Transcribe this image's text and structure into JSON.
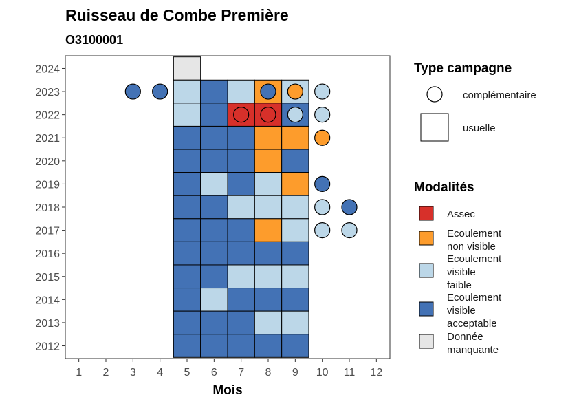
{
  "chart_data": {
    "type": "heatmap",
    "title": "Ruisseau de Combe Première",
    "subtitle": "O3100001",
    "xlabel": "Mois",
    "ylabel": "",
    "x_ticks": [
      1,
      2,
      3,
      4,
      5,
      6,
      7,
      8,
      9,
      10,
      11,
      12
    ],
    "y_ticks": [
      2012,
      2013,
      2014,
      2015,
      2016,
      2017,
      2018,
      2019,
      2020,
      2021,
      2022,
      2023,
      2024
    ],
    "xlim": [
      0.5,
      12.5
    ],
    "ylim": [
      2011.45,
      2024.55
    ],
    "colors": {
      "Assec": "#d7302a",
      "Ecoulement non visible": "#fd9c2c",
      "Ecoulement visible faible": "#bcd7e8",
      "Ecoulement visible acceptable": "#4372b5",
      "Donnée manquante": "#e6e6e6"
    },
    "usuelle": [
      {
        "year": 2024,
        "months": [
          5
        ],
        "values": [
          "Donnée manquante"
        ]
      },
      {
        "year": 2023,
        "months": [
          5,
          6,
          7,
          8,
          9
        ],
        "values": [
          "Ecoulement visible faible",
          "Ecoulement visible acceptable",
          "Ecoulement visible faible",
          "Ecoulement non visible",
          "Ecoulement visible faible"
        ]
      },
      {
        "year": 2022,
        "months": [
          5,
          6,
          7,
          8,
          9
        ],
        "values": [
          "Ecoulement visible faible",
          "Ecoulement visible acceptable",
          "Assec",
          "Assec",
          "Ecoulement visible acceptable"
        ]
      },
      {
        "year": 2021,
        "months": [
          5,
          6,
          7,
          8,
          9
        ],
        "values": [
          "Ecoulement visible acceptable",
          "Ecoulement visible acceptable",
          "Ecoulement visible acceptable",
          "Ecoulement non visible",
          "Ecoulement non visible"
        ]
      },
      {
        "year": 2020,
        "months": [
          5,
          6,
          7,
          8,
          9
        ],
        "values": [
          "Ecoulement visible acceptable",
          "Ecoulement visible acceptable",
          "Ecoulement visible acceptable",
          "Ecoulement non visible",
          "Ecoulement visible acceptable"
        ]
      },
      {
        "year": 2019,
        "months": [
          5,
          6,
          7,
          8,
          9
        ],
        "values": [
          "Ecoulement visible acceptable",
          "Ecoulement visible faible",
          "Ecoulement visible acceptable",
          "Ecoulement visible faible",
          "Ecoulement non visible"
        ]
      },
      {
        "year": 2018,
        "months": [
          5,
          6,
          7,
          8,
          9
        ],
        "values": [
          "Ecoulement visible acceptable",
          "Ecoulement visible acceptable",
          "Ecoulement visible faible",
          "Ecoulement visible faible",
          "Ecoulement visible faible"
        ]
      },
      {
        "year": 2017,
        "months": [
          5,
          6,
          7,
          8,
          9
        ],
        "values": [
          "Ecoulement visible acceptable",
          "Ecoulement visible acceptable",
          "Ecoulement visible acceptable",
          "Ecoulement non visible",
          "Ecoulement visible faible"
        ]
      },
      {
        "year": 2016,
        "months": [
          5,
          6,
          7,
          8,
          9
        ],
        "values": [
          "Ecoulement visible acceptable",
          "Ecoulement visible acceptable",
          "Ecoulement visible acceptable",
          "Ecoulement visible acceptable",
          "Ecoulement visible acceptable"
        ]
      },
      {
        "year": 2015,
        "months": [
          5,
          6,
          7,
          8,
          9
        ],
        "values": [
          "Ecoulement visible acceptable",
          "Ecoulement visible acceptable",
          "Ecoulement visible faible",
          "Ecoulement visible faible",
          "Ecoulement visible faible"
        ]
      },
      {
        "year": 2014,
        "months": [
          5,
          6,
          7,
          8,
          9
        ],
        "values": [
          "Ecoulement visible acceptable",
          "Ecoulement visible faible",
          "Ecoulement visible acceptable",
          "Ecoulement visible acceptable",
          "Ecoulement visible acceptable"
        ]
      },
      {
        "year": 2013,
        "months": [
          5,
          6,
          7,
          8,
          9
        ],
        "values": [
          "Ecoulement visible acceptable",
          "Ecoulement visible acceptable",
          "Ecoulement visible acceptable",
          "Ecoulement visible faible",
          "Ecoulement visible faible"
        ]
      },
      {
        "year": 2012,
        "months": [
          5,
          6,
          7,
          8,
          9
        ],
        "values": [
          "Ecoulement visible acceptable",
          "Ecoulement visible acceptable",
          "Ecoulement visible acceptable",
          "Ecoulement visible acceptable",
          "Ecoulement visible acceptable"
        ]
      }
    ],
    "complementaire": [
      {
        "year": 2023,
        "month": 3,
        "value": "Ecoulement visible acceptable"
      },
      {
        "year": 2023,
        "month": 4,
        "value": "Ecoulement visible acceptable"
      },
      {
        "year": 2023,
        "month": 8,
        "value": "Ecoulement visible acceptable"
      },
      {
        "year": 2023,
        "month": 9,
        "value": "Ecoulement non visible"
      },
      {
        "year": 2023,
        "month": 10,
        "value": "Ecoulement visible faible"
      },
      {
        "year": 2022,
        "month": 7,
        "value": "Assec"
      },
      {
        "year": 2022,
        "month": 8,
        "value": "Assec"
      },
      {
        "year": 2022,
        "month": 9,
        "value": "Ecoulement visible faible"
      },
      {
        "year": 2022,
        "month": 10,
        "value": "Ecoulement visible faible"
      },
      {
        "year": 2021,
        "month": 10,
        "value": "Ecoulement non visible"
      },
      {
        "year": 2019,
        "month": 10,
        "value": "Ecoulement visible acceptable"
      },
      {
        "year": 2018,
        "month": 10,
        "value": "Ecoulement visible faible"
      },
      {
        "year": 2018,
        "month": 11,
        "value": "Ecoulement visible acceptable"
      },
      {
        "year": 2017,
        "month": 10,
        "value": "Ecoulement visible faible"
      },
      {
        "year": 2017,
        "month": 11,
        "value": "Ecoulement visible faible"
      }
    ],
    "legend": {
      "type_title": "Type campagne",
      "type_entries": [
        "complémentaire",
        "usuelle"
      ],
      "mod_title": "Modalités",
      "mod_entries": [
        {
          "key": "Assec",
          "lines": [
            "Assec"
          ]
        },
        {
          "key": "Ecoulement non visible",
          "lines": [
            "Ecoulement",
            "non visible"
          ]
        },
        {
          "key": "Ecoulement visible faible",
          "lines": [
            "Ecoulement",
            "visible",
            "faible"
          ]
        },
        {
          "key": "Ecoulement visible acceptable",
          "lines": [
            "Ecoulement",
            "visible",
            "acceptable"
          ]
        },
        {
          "key": "Donnée manquante",
          "lines": [
            "Donnée",
            "manquante"
          ]
        }
      ],
      "placement": "right"
    },
    "grid": false
  }
}
